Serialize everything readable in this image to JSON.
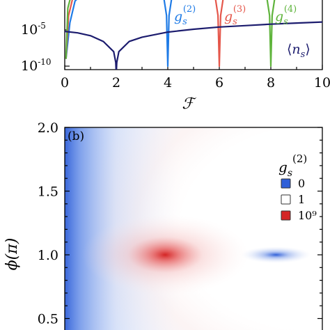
{
  "colors": {
    "g2": "#1f7be6",
    "g3": "#e5574b",
    "g4": "#5fb43c",
    "ns": "#1c1c6e",
    "blue": "#2f5fd8",
    "red": "#d42525",
    "white": "#ffffff"
  },
  "chart_data": [
    {
      "type": "line",
      "panel": "a",
      "xlabel": "ℱ",
      "xticks": [
        "0",
        "2",
        "4",
        "6",
        "8",
        "10"
      ],
      "yticks": [
        "10-5",
        "10-10"
      ],
      "xlim": [
        0,
        10
      ],
      "yscale": "log",
      "series": [
        {
          "name": "g_s^(2)",
          "label_base": "g",
          "label_sub": "s",
          "label_sup": "(2)",
          "color_key": "g2",
          "dip_x": 4.0,
          "x": [
            0.05,
            0.2,
            0.4,
            1,
            2,
            3,
            3.8,
            3.95,
            4.0,
            4.05,
            4.2
          ],
          "log10_y": [
            -9,
            -4,
            -1,
            1,
            1,
            1,
            0.5,
            -3,
            -10,
            -3,
            0.5
          ]
        },
        {
          "name": "g_s^(3)",
          "label_base": "g",
          "label_sub": "s",
          "label_sup": "(3)",
          "color_key": "g3",
          "dip_x": 6.0,
          "x": [
            0.05,
            0.15,
            0.35,
            1,
            3,
            5.8,
            5.95,
            6.0,
            6.05,
            6.2
          ],
          "log10_y": [
            -9,
            -3,
            0,
            1,
            1,
            0.5,
            -3,
            -10,
            -3,
            0.5
          ]
        },
        {
          "name": "g_s^(4)",
          "label_base": "g",
          "label_sub": "s",
          "label_sup": "(4)",
          "color_key": "g4",
          "dip_x": 8.0,
          "x": [
            0.05,
            0.12,
            0.3,
            1,
            5,
            7.8,
            7.95,
            8.0,
            8.05,
            8.2,
            8.6
          ],
          "log10_y": [
            -9,
            -2,
            0.5,
            1,
            1,
            0.5,
            -3,
            -10,
            -3,
            0.5,
            1
          ]
        },
        {
          "name": "⟨n_s⟩",
          "label_base": "n",
          "label_sub": "s",
          "color_key": "ns",
          "x": [
            0,
            0.5,
            1.0,
            1.5,
            1.9,
            1.98,
            2.0,
            2.02,
            2.1,
            2.5,
            3,
            4,
            5,
            6,
            7,
            8,
            9,
            10
          ],
          "log10_y": [
            -5.2,
            -5.4,
            -5.8,
            -6.6,
            -8.0,
            -9.5,
            -11,
            -9.5,
            -8.0,
            -6.6,
            -6.0,
            -5.3,
            -4.9,
            -4.6,
            -4.4,
            -4.2,
            -4.05,
            -3.9
          ]
        }
      ]
    },
    {
      "type": "heatmap",
      "panel": "b",
      "panel_label": "(b)",
      "ylabel": "ϕ(π)",
      "yticks": [
        "2.0",
        "1.5",
        "1.0",
        "0.5"
      ],
      "ylim": [
        0.4,
        2.0
      ],
      "colorbar_title": {
        "base": "g",
        "sub": "s",
        "sup": "(2)"
      },
      "legend": [
        {
          "label": "0",
          "color_key": "blue"
        },
        {
          "label": "1",
          "color_key": "white"
        },
        {
          "label": "10⁹",
          "color_key": "red"
        }
      ],
      "features": [
        {
          "kind": "peak",
          "value_label": "10⁹",
          "x_fraction": 0.39,
          "phi": 1.0
        },
        {
          "kind": "dip",
          "value_label": "0",
          "x_fraction": 0.82,
          "phi": 1.0
        }
      ]
    }
  ]
}
